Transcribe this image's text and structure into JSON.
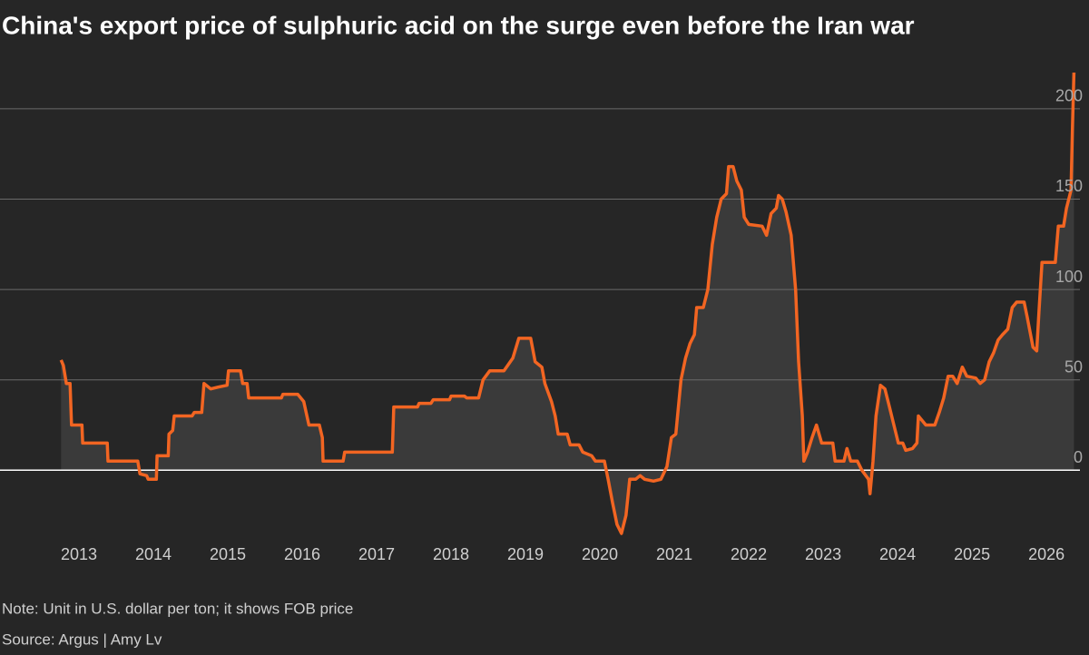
{
  "chart_data": {
    "type": "line",
    "title": "China's export price of sulphuric acid on the surge even before the Iran war",
    "note": "Note: Unit in U.S. dollar per ton; it shows FOB price",
    "source": "Source: Argus | Amy Lv",
    "x": [
      2012.76,
      2012.79,
      2012.83,
      2012.88,
      2012.9,
      2013.04,
      2013.05,
      2013.38,
      2013.39,
      2013.79,
      2013.82,
      2013.91,
      2013.93,
      2014.04,
      2014.05,
      2014.2,
      2014.21,
      2014.26,
      2014.28,
      2014.52,
      2014.55,
      2014.65,
      2014.68,
      2014.77,
      2014.87,
      2014.99,
      2015.01,
      2015.17,
      2015.2,
      2015.26,
      2015.28,
      2015.72,
      2015.74,
      2015.94,
      2016.02,
      2016.09,
      2016.23,
      2016.27,
      2016.28,
      2016.55,
      2016.57,
      2017.21,
      2017.23,
      2017.55,
      2017.57,
      2017.73,
      2017.76,
      2017.98,
      2018.0,
      2018.18,
      2018.21,
      2018.37,
      2018.43,
      2018.52,
      2018.71,
      2018.83,
      2018.91,
      2019.07,
      2019.13,
      2019.22,
      2019.26,
      2019.35,
      2019.4,
      2019.44,
      2019.56,
      2019.6,
      2019.72,
      2019.77,
      2019.89,
      2019.94,
      2020.06,
      2020.11,
      2020.17,
      2020.23,
      2020.29,
      2020.35,
      2020.4,
      2020.48,
      2020.54,
      2020.6,
      2020.72,
      2020.82,
      2020.9,
      2020.96,
      2021.02,
      2021.09,
      2021.15,
      2021.21,
      2021.27,
      2021.3,
      2021.39,
      2021.45,
      2021.51,
      2021.57,
      2021.63,
      2021.7,
      2021.73,
      2021.79,
      2021.84,
      2021.9,
      2021.94,
      2022.0,
      2022.18,
      2022.24,
      2022.3,
      2022.37,
      2022.4,
      2022.45,
      2022.5,
      2022.57,
      2022.63,
      2022.67,
      2022.72,
      2022.74,
      2022.79,
      2022.85,
      2022.91,
      2022.98,
      2023.13,
      2023.16,
      2023.28,
      2023.32,
      2023.37,
      2023.46,
      2023.52,
      2023.61,
      2023.63,
      2023.67,
      2023.71,
      2023.77,
      2023.83,
      2023.89,
      2023.95,
      2024.01,
      2024.07,
      2024.11,
      2024.2,
      2024.26,
      2024.28,
      2024.38,
      2024.5,
      2024.56,
      2024.62,
      2024.68,
      2024.74,
      2024.8,
      2024.87,
      2024.93,
      2025.05,
      2025.11,
      2025.17,
      2025.23,
      2025.29,
      2025.35,
      2025.41,
      2025.48,
      2025.54,
      2025.6,
      2025.7,
      2025.74,
      2025.82,
      2025.87,
      2025.9,
      2025.94,
      2026.12,
      2026.16,
      2026.23,
      2026.27,
      2026.33,
      2026.35,
      2026.37
    ],
    "values": [
      61,
      58,
      48,
      48,
      25,
      25,
      15,
      15,
      5,
      5,
      -2,
      -3,
      -5,
      -5,
      8,
      8,
      20,
      22,
      30,
      30,
      32,
      32,
      48,
      45,
      46,
      47,
      55,
      55,
      48,
      48,
      40,
      40,
      42,
      42,
      38,
      25,
      25,
      18,
      5,
      5,
      10,
      10,
      35,
      35,
      37,
      37,
      39,
      39,
      41,
      41,
      40,
      40,
      50,
      55,
      55,
      62,
      73,
      73,
      60,
      57,
      48,
      38,
      30,
      20,
      20,
      14,
      14,
      10,
      8,
      5,
      5,
      -5,
      -18,
      -30,
      -35,
      -25,
      -5,
      -5,
      -3,
      -5,
      -6,
      -5,
      2,
      18,
      20,
      50,
      62,
      70,
      75,
      90,
      90,
      100,
      125,
      140,
      150,
      153,
      168,
      168,
      160,
      155,
      140,
      136,
      135,
      130,
      142,
      145,
      152,
      150,
      143,
      130,
      100,
      60,
      30,
      5,
      10,
      18,
      25,
      15,
      15,
      5,
      5,
      12,
      5,
      5,
      0,
      -5,
      -13,
      5,
      30,
      47,
      45,
      35,
      25,
      15,
      15,
      11,
      12,
      15,
      30,
      25,
      25,
      32,
      40,
      52,
      52,
      48,
      57,
      52,
      51,
      48,
      50,
      60,
      65,
      72,
      75,
      78,
      90,
      93,
      93,
      85,
      68,
      66,
      88,
      115,
      115,
      135,
      135,
      145,
      155,
      190,
      220
    ],
    "color": "#f26522",
    "xlim": [
      2012.5,
      2026.45
    ],
    "xticks": [
      2013,
      2014,
      2015,
      2016,
      2017,
      2018,
      2019,
      2020,
      2021,
      2022,
      2023,
      2024,
      2025,
      2026
    ],
    "ylim": [
      -40,
      220
    ],
    "yticks": [
      0,
      50,
      100,
      150,
      200
    ],
    "grid": true
  }
}
